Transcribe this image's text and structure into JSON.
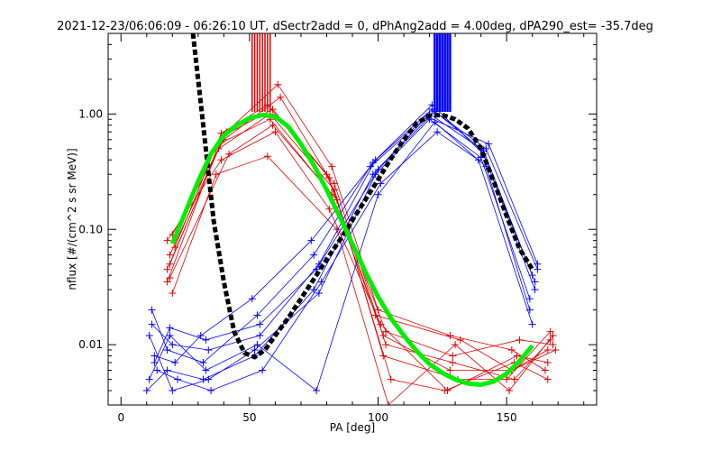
{
  "chart_data": {
    "type": "line",
    "title": "2021-12-23/06:06:09 - 06:26:10 UT, dSectr2add = 0, dPhAng2add = 4.00deg, dPA290_est= -35.7deg",
    "xlabel": "PA [deg]",
    "ylabel": "nflux [#/(cm^2 s sr MeV)]",
    "x_range": [
      -5,
      185
    ],
    "y_range": [
      0.003,
      5
    ],
    "y_scale": "log",
    "x_ticks": [
      {
        "value": 0,
        "label": "0"
      },
      {
        "value": 50,
        "label": "50"
      },
      {
        "value": 100,
        "label": "100"
      },
      {
        "value": 150,
        "label": "150"
      }
    ],
    "y_ticks": [
      {
        "value": 0.01,
        "label": "0.01"
      },
      {
        "value": 0.1,
        "label": "0.10"
      },
      {
        "value": 1,
        "label": "1.00"
      }
    ],
    "colors": {
      "red_series": "#e00000",
      "blue_series": "#0000ff",
      "black_fit": "#000000",
      "green_fit": "#00ee00",
      "axes": "#000000"
    },
    "markers": {
      "red_pa": [
        51,
        52,
        53,
        54,
        55,
        56,
        57,
        58
      ],
      "blue_pa": [
        122,
        123,
        124,
        125,
        126,
        127,
        128
      ]
    },
    "series": [
      {
        "color": "red",
        "x": [
          18,
          38,
          58,
          82,
          102,
          128,
          152,
          166
        ],
        "y": [
          0.035,
          0.55,
          0.9,
          0.2,
          0.012,
          0.006,
          0.006,
          0.009
        ]
      },
      {
        "color": "red",
        "x": [
          19,
          40,
          59,
          83,
          103,
          129,
          153,
          167
        ],
        "y": [
          0.05,
          0.65,
          1.1,
          0.25,
          0.01,
          0.007,
          0.005,
          0.011
        ]
      },
      {
        "color": "red",
        "x": [
          18,
          39,
          60,
          81,
          101,
          127,
          154,
          166
        ],
        "y": [
          0.08,
          0.4,
          0.7,
          0.15,
          0.015,
          0.004,
          0.008,
          0.007
        ]
      },
      {
        "color": "red",
        "x": [
          20,
          37,
          57,
          84,
          104,
          130,
          151,
          168
        ],
        "y": [
          0.028,
          0.3,
          0.43,
          0.1,
          0.003,
          0.01,
          0.004,
          0.012
        ]
      },
      {
        "color": "red",
        "x": [
          19,
          41,
          61,
          82,
          100,
          128,
          152,
          165
        ],
        "y": [
          0.06,
          0.7,
          1.8,
          0.35,
          0.02,
          0.012,
          0.009,
          0.006
        ]
      },
      {
        "color": "red",
        "x": [
          18,
          38,
          58,
          83,
          102,
          131,
          150,
          167
        ],
        "y": [
          0.045,
          0.5,
          1.0,
          0.22,
          0.008,
          0.005,
          0.005,
          0.013
        ]
      },
      {
        "color": "red",
        "x": [
          20,
          40,
          62,
          80,
          103,
          129,
          155,
          168
        ],
        "y": [
          0.09,
          0.6,
          1.4,
          0.3,
          0.013,
          0.008,
          0.011,
          0.01
        ]
      },
      {
        "color": "red",
        "x": [
          19,
          42,
          59,
          84,
          105,
          126,
          153,
          166
        ],
        "y": [
          0.038,
          0.45,
          0.8,
          0.18,
          0.005,
          0.004,
          0.007,
          0.005
        ]
      },
      {
        "color": "red",
        "x": [
          21,
          39,
          57,
          81,
          99,
          132,
          152,
          169
        ],
        "y": [
          0.07,
          0.68,
          1.2,
          0.28,
          0.018,
          0.011,
          0.006,
          0.009
        ]
      },
      {
        "color": "blue",
        "x": [
          10,
          18,
          32,
          52,
          75,
          98,
          120,
          140,
          160
        ],
        "y": [
          0.004,
          0.006,
          0.005,
          0.008,
          0.03,
          0.3,
          1.0,
          0.5,
          0.04
        ]
      },
      {
        "color": "blue",
        "x": [
          12,
          20,
          34,
          54,
          77,
          99,
          121,
          141,
          161
        ],
        "y": [
          0.015,
          0.01,
          0.009,
          0.012,
          0.05,
          0.4,
          1.2,
          0.45,
          0.03
        ]
      },
      {
        "color": "blue",
        "x": [
          11,
          19,
          33,
          53,
          76,
          100,
          122,
          142,
          159
        ],
        "y": [
          0.005,
          0.012,
          0.006,
          0.01,
          0.004,
          0.2,
          0.85,
          0.35,
          0.02
        ]
      },
      {
        "color": "blue",
        "x": [
          13,
          21,
          31,
          51,
          74,
          97,
          119,
          143,
          162
        ],
        "y": [
          0.008,
          0.007,
          0.012,
          0.025,
          0.08,
          0.35,
          0.95,
          0.55,
          0.05
        ]
      },
      {
        "color": "blue",
        "x": [
          14,
          22,
          35,
          55,
          78,
          101,
          123,
          139,
          160
        ],
        "y": [
          0.006,
          0.005,
          0.004,
          0.006,
          0.035,
          0.25,
          0.7,
          0.4,
          0.015
        ]
      },
      {
        "color": "blue",
        "x": [
          12,
          18,
          32,
          53,
          75,
          98,
          121,
          141,
          161
        ],
        "y": [
          0.02,
          0.009,
          0.007,
          0.018,
          0.06,
          0.38,
          1.1,
          0.48,
          0.035
        ]
      },
      {
        "color": "blue",
        "x": [
          11,
          20,
          34,
          52,
          77,
          99,
          120,
          140,
          159
        ],
        "y": [
          0.012,
          0.004,
          0.005,
          0.009,
          0.028,
          0.3,
          0.9,
          0.42,
          0.025
        ]
      },
      {
        "color": "blue",
        "x": [
          13,
          19,
          33,
          54,
          76,
          100,
          122,
          142,
          162
        ],
        "y": [
          0.007,
          0.014,
          0.011,
          0.015,
          0.045,
          0.33,
          1.05,
          0.5,
          0.045
        ]
      }
    ],
    "fits": [
      {
        "color": "black",
        "dashed": true,
        "x": [
          28,
          32,
          36,
          40,
          44,
          48,
          52,
          56,
          60,
          65,
          70,
          75,
          80,
          85,
          90,
          95,
          100,
          105,
          110,
          115,
          120,
          125,
          130,
          135,
          140,
          145,
          150,
          155,
          160
        ],
        "y": [
          5.0,
          0.8,
          0.12,
          0.035,
          0.013,
          0.0085,
          0.0078,
          0.009,
          0.012,
          0.017,
          0.025,
          0.037,
          0.055,
          0.08,
          0.12,
          0.18,
          0.27,
          0.41,
          0.6,
          0.83,
          0.97,
          0.98,
          0.9,
          0.75,
          0.5,
          0.26,
          0.13,
          0.068,
          0.045
        ]
      },
      {
        "color": "green",
        "dashed": false,
        "x": [
          20,
          25,
          30,
          35,
          40,
          45,
          50,
          55,
          60,
          65,
          70,
          75,
          80,
          85,
          90,
          95,
          100,
          105,
          110,
          115,
          120,
          125,
          130,
          135,
          140,
          145,
          150,
          155,
          160
        ],
        "y": [
          0.075,
          0.14,
          0.26,
          0.45,
          0.65,
          0.8,
          0.92,
          0.98,
          0.95,
          0.78,
          0.55,
          0.36,
          0.22,
          0.13,
          0.075,
          0.043,
          0.026,
          0.017,
          0.012,
          0.0088,
          0.0068,
          0.0057,
          0.005,
          0.0046,
          0.0045,
          0.0048,
          0.0056,
          0.0072,
          0.0098
        ]
      }
    ]
  }
}
